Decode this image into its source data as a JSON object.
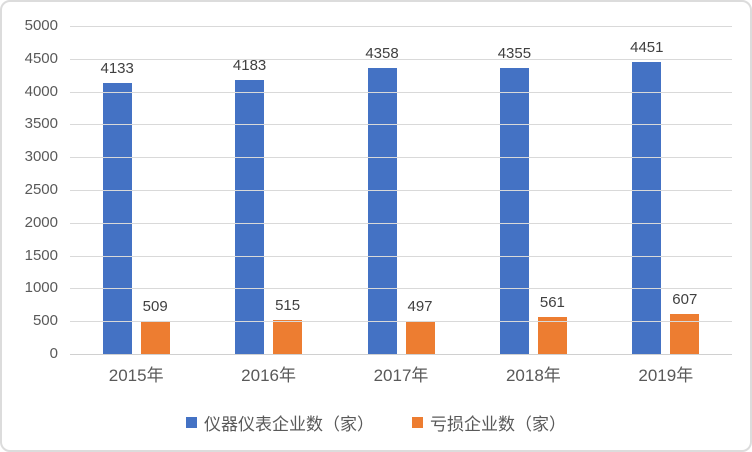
{
  "chart_data": {
    "type": "bar",
    "title": "",
    "xlabel": "",
    "ylabel": "",
    "categories": [
      "2015年",
      "2016年",
      "2017年",
      "2018年",
      "2019年"
    ],
    "series": [
      {
        "name": "仪器仪表企业数（家）",
        "color": "#4472C4",
        "values": [
          4133,
          4183,
          4358,
          4355,
          4451
        ]
      },
      {
        "name": "亏损企业数（家）",
        "color": "#ED7D31",
        "values": [
          509,
          515,
          497,
          561,
          607
        ]
      }
    ],
    "ylim": [
      0,
      5000
    ],
    "ytick_step": 500,
    "ytick_labels": [
      "0",
      "500",
      "1000",
      "1500",
      "2000",
      "2500",
      "3000",
      "3500",
      "4000",
      "4500",
      "5000"
    ],
    "grid": true,
    "legend_position": "bottom"
  },
  "colors": {
    "background": "#FFFFFF",
    "border": "#DCDCDC",
    "gridline": "#D9D9D9",
    "axis_text": "#595959",
    "data_label_text": "#404040"
  }
}
